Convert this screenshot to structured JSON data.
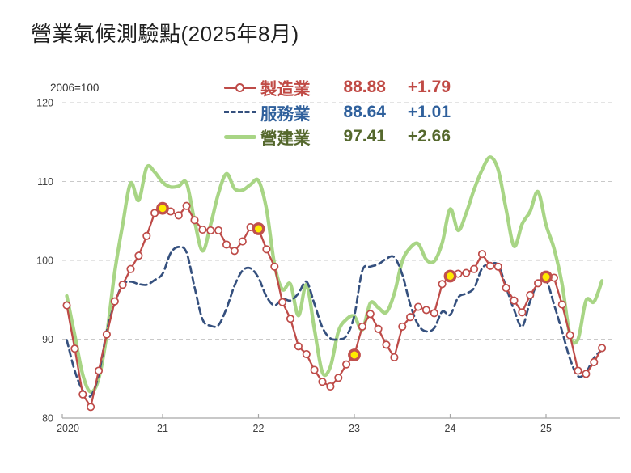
{
  "title": "營業氣候測驗點(2025年8月)",
  "axis_note": "2006=100",
  "legend": {
    "items": [
      {
        "id": "manufacturing",
        "label": "製造業",
        "value": "88.88",
        "change": "+1.79",
        "line_color": "#BE4B48",
        "text_color": "#C04A45",
        "swatch": "line-circle"
      },
      {
        "id": "services",
        "label": "服務業",
        "value": "88.64",
        "change": "+1.01",
        "line_color": "#35507E",
        "text_color": "#2F609C",
        "swatch": "dashed"
      },
      {
        "id": "construction",
        "label": "營建業",
        "value": "97.41",
        "change": "+2.66",
        "line_color": "#A8D585",
        "text_color": "#55682D",
        "swatch": "thick-solid"
      }
    ]
  },
  "colors": {
    "grid": "#c9c9c9",
    "axis_line": "#a6a6a6",
    "axis_text": "#404040",
    "highlight_fill": "#FFEB00",
    "highlight_ring": "#C0504D",
    "marker_fill": "#ffffff"
  },
  "chart_data": {
    "type": "line",
    "title": "營業氣候測驗點(2025年8月)",
    "index_base": "2006=100",
    "x_monthly_start": "2020-01",
    "x_monthly_end": "2025-08",
    "x_tick_labels": [
      "2020",
      "21",
      "22",
      "23",
      "24",
      "25"
    ],
    "y_ticks": [
      80,
      90,
      100,
      110,
      120
    ],
    "ylim": [
      80,
      120
    ],
    "grid": "horizontal-dashed",
    "legend_position": "top-center",
    "highlight_note": "yellow markers = January of each year on manufacturing series",
    "highlight_indices": [
      12,
      24,
      36,
      48,
      60
    ],
    "series": [
      {
        "name": "製造業",
        "latest": 88.88,
        "change": 1.79,
        "color": "#BE4B48",
        "style": "solid",
        "width": 2.3,
        "markers": "open-circle",
        "smooth": false,
        "values": [
          94.3,
          88.8,
          83.0,
          81.4,
          86.0,
          90.6,
          94.8,
          96.9,
          98.9,
          100.6,
          103.1,
          106.0,
          106.6,
          106.2,
          105.7,
          106.9,
          105.1,
          103.9,
          103.8,
          103.8,
          102.0,
          101.2,
          102.4,
          104.2,
          104.0,
          101.4,
          99.2,
          94.7,
          92.6,
          89.1,
          88.1,
          86.1,
          84.6,
          84.0,
          85.1,
          86.8,
          88.0,
          91.6,
          93.2,
          91.3,
          89.3,
          87.7,
          91.6,
          92.8,
          94.1,
          93.7,
          93.3,
          97.0,
          98.0,
          98.3,
          98.4,
          98.9,
          100.8,
          99.3,
          99.2,
          96.5,
          94.9,
          93.4,
          95.6,
          97.1,
          97.9,
          97.8,
          94.4,
          90.5,
          86.0,
          85.6,
          87.09,
          88.88
        ]
      },
      {
        "name": "服務業",
        "latest": 88.64,
        "change": 1.01,
        "color": "#35507E",
        "style": "dashed",
        "width": 2.7,
        "markers": "none",
        "smooth": true,
        "values": [
          89.9,
          86.0,
          83.5,
          82.8,
          85.5,
          91.0,
          94.5,
          96.9,
          97.3,
          97.0,
          96.9,
          97.5,
          98.3,
          100.9,
          101.7,
          101.0,
          96.6,
          92.5,
          91.7,
          91.8,
          93.9,
          96.8,
          98.7,
          99.0,
          97.8,
          95.4,
          94.3,
          95.1,
          94.9,
          95.8,
          97.3,
          94.5,
          91.5,
          90.1,
          90.0,
          90.4,
          93.0,
          98.7,
          99.2,
          99.5,
          100.2,
          100.4,
          98.2,
          94.4,
          91.8,
          91.0,
          91.4,
          93.5,
          93.1,
          95.3,
          95.8,
          96.5,
          99.0,
          99.5,
          99.4,
          96.6,
          93.7,
          91.6,
          94.8,
          97.2,
          97.5,
          94.4,
          91.0,
          87.5,
          85.3,
          85.8,
          87.63,
          88.64
        ]
      },
      {
        "name": "營建業",
        "latest": 97.41,
        "change": 2.66,
        "color": "#A8D585",
        "style": "solid",
        "width": 4.3,
        "markers": "none",
        "smooth": true,
        "values": [
          95.5,
          90.5,
          85.5,
          83.3,
          85.0,
          90.5,
          98.5,
          104.5,
          109.8,
          107.6,
          111.8,
          111.2,
          109.9,
          109.3,
          109.4,
          109.8,
          105.0,
          101.2,
          104.5,
          108.5,
          111.0,
          109.1,
          108.9,
          109.6,
          110.1,
          106.5,
          99.5,
          96.3,
          97.0,
          93.0,
          96.9,
          91.3,
          85.8,
          86.5,
          91.0,
          92.5,
          92.9,
          91.2,
          94.6,
          94.0,
          93.4,
          95.8,
          99.9,
          101.6,
          102.1,
          100.1,
          99.9,
          102.2,
          106.5,
          103.8,
          106.0,
          109.0,
          111.5,
          113.1,
          111.5,
          106.5,
          101.8,
          104.6,
          106.2,
          108.7,
          104.5,
          101.5,
          97.0,
          90.5,
          90.0,
          94.9,
          94.75,
          97.41
        ]
      }
    ]
  }
}
